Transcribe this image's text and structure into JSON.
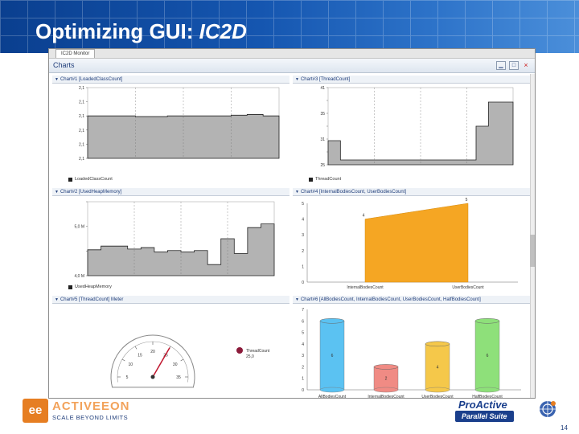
{
  "slide": {
    "title": "Optimizing GUI: ",
    "title_italic": "IC2D",
    "page_number": "14"
  },
  "window": {
    "tab_label": "IC2D Monitor",
    "view_title": "Charts",
    "close_glyph": "×"
  },
  "panels": [
    {
      "title": "Chart#1 [LoadedClassCount]",
      "legend": "LoadedClassCount",
      "y_ticks": [
        "2,1",
        "2,1",
        "2,1",
        "2,1",
        "2,1",
        "2,1"
      ]
    },
    {
      "title": "Chart#3 [ThreadCount]",
      "legend": "ThreadCount",
      "y_ticks": [
        "41",
        "",
        "35",
        "",
        "31",
        "",
        "25"
      ]
    },
    {
      "title": "Chart#2 [UsedHeapMemory]",
      "legend": "UsedHeapMemory",
      "y_ticks": [
        "",
        "5,0 M",
        "",
        "4,0 M"
      ]
    },
    {
      "title": "Chart#4 [InternalBodiesCount, UserBodiesCount]",
      "y_ticks": [
        "5",
        "4",
        "3",
        "2",
        "1",
        "0"
      ],
      "x_labels": [
        "InternalBodiesCount",
        "UserBodiesCount"
      ],
      "value_labels": [
        "4",
        "5"
      ]
    },
    {
      "title": "Chart#5 [ThreadCount] Meter",
      "legend": "ThreadCount",
      "legend2": "25,0",
      "gauge_ticks": [
        "5",
        "10",
        "15",
        "20",
        "25",
        "30",
        "35"
      ]
    },
    {
      "title": "Chart#6 [AllBodiesCount, InternalBodiesCount, UserBodiesCount, HalfBodiesCount]",
      "y_ticks": [
        "7",
        "6",
        "5",
        "4",
        "3",
        "2",
        "1",
        "0"
      ],
      "x_labels": [
        "AllBodiesCount",
        "InternalBodiesCount",
        "UserBodiesCount",
        "HalfBodiesCount"
      ],
      "value_labels": [
        "6",
        "2",
        "4",
        "6"
      ]
    }
  ],
  "chart_data": [
    {
      "type": "area",
      "title": "Chart#1 [LoadedClassCount]",
      "series": [
        {
          "name": "LoadedClassCount",
          "values": [
            0.6,
            0.6,
            0.6,
            0.59,
            0.59,
            0.6,
            0.6,
            0.6,
            0.6,
            0.61,
            0.62,
            0.6,
            0.6
          ]
        }
      ],
      "ylim": [
        0,
        1
      ]
    },
    {
      "type": "area",
      "title": "Chart#3 [ThreadCount]",
      "series": [
        {
          "name": "ThreadCount",
          "values": [
            30,
            26,
            26,
            26,
            26,
            26,
            26,
            26,
            26,
            26,
            26,
            26,
            33,
            38,
            38,
            36
          ]
        }
      ],
      "ylim": [
        25,
        41
      ]
    },
    {
      "type": "area",
      "title": "Chart#2 [UsedHeapMemory]",
      "series": [
        {
          "name": "UsedHeapMemory",
          "values": [
            0.35,
            0.4,
            0.4,
            0.36,
            0.38,
            0.32,
            0.34,
            0.32,
            0.34,
            0.15,
            0.5,
            0.3,
            0.65,
            0.7,
            0.62
          ]
        }
      ],
      "ylim": [
        0,
        1
      ]
    },
    {
      "type": "area",
      "title": "Chart#4 [InternalBodiesCount, UserBodiesCount]",
      "categories": [
        "InternalBodiesCount",
        "UserBodiesCount"
      ],
      "values": [
        4,
        5
      ],
      "ylim": [
        0,
        5
      ]
    },
    {
      "type": "gauge",
      "title": "Chart#5 [ThreadCount] Meter",
      "value": 25.0,
      "range": [
        5,
        35
      ]
    },
    {
      "type": "bar",
      "title": "Chart#6 [AllBodiesCount, InternalBodiesCount, UserBodiesCount, HalfBodiesCount]",
      "categories": [
        "AllBodiesCount",
        "InternalBodiesCount",
        "UserBodiesCount",
        "HalfBodiesCount"
      ],
      "values": [
        6,
        2,
        4,
        6
      ],
      "ylim": [
        0,
        7
      ],
      "colors": [
        "#5bc2f2",
        "#f08b84",
        "#f5c84a",
        "#8ee07a"
      ]
    }
  ],
  "colors": {
    "grey_fill": "#b3b3b3",
    "orange_fill": "#f5a623",
    "banner": "#1556b0"
  },
  "footer": {
    "left_logo_mark": "ee",
    "left_logo_word": "ACTIVEEON",
    "left_logo_tag": "SCALE BEYOND LIMITS",
    "right_logo_word": "ProActive",
    "right_logo_sub": "Parallel Suite"
  }
}
